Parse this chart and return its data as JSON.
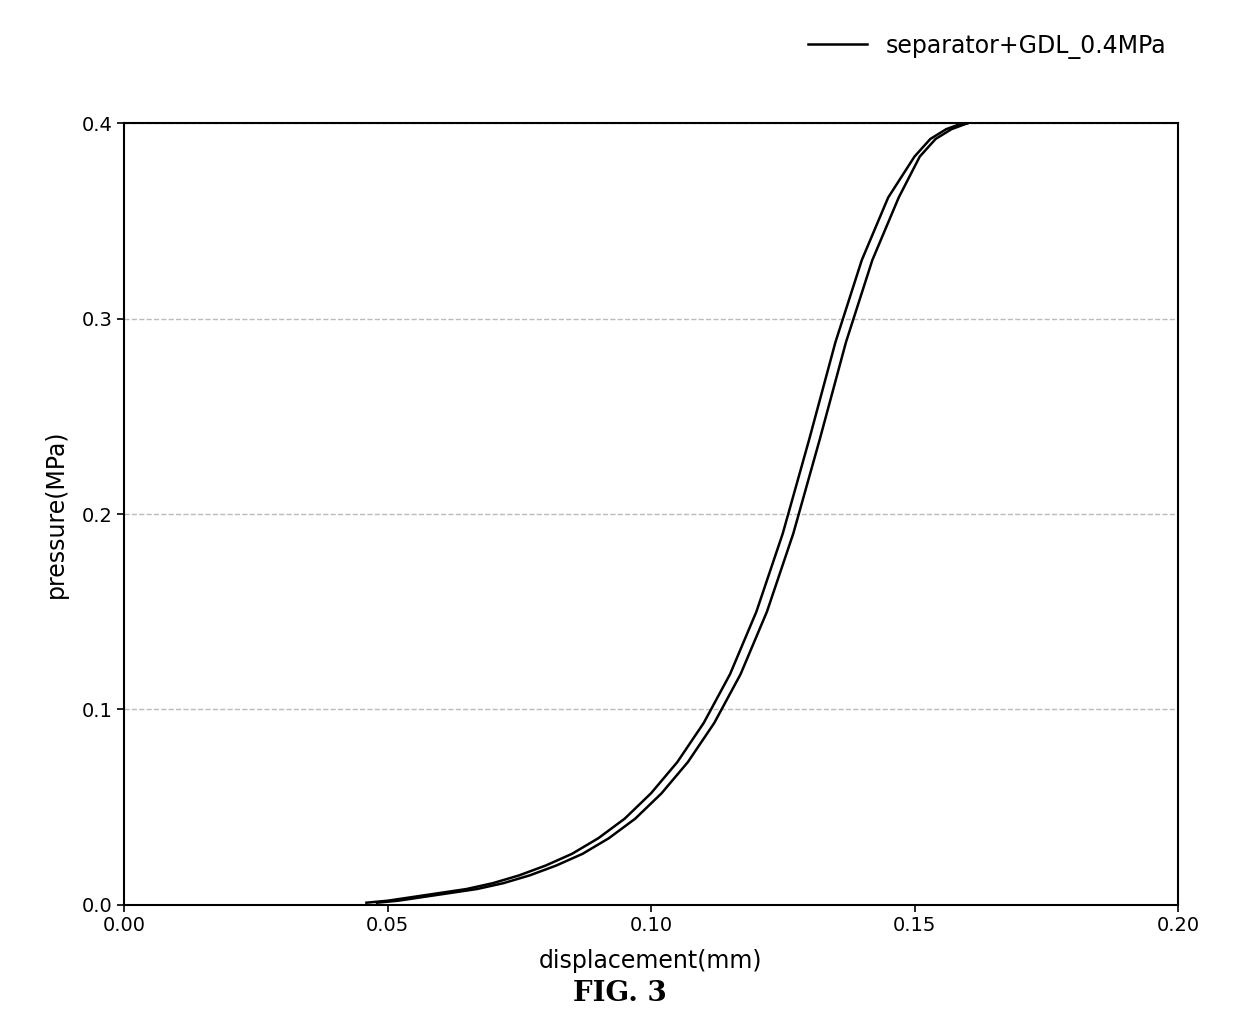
{
  "legend_label": "separator+GDL_0.4MPa",
  "xlabel": "displacement(mm)",
  "ylabel": "pressure(MPa)",
  "figure_label": "FIG. 3",
  "xlim": [
    0.0,
    0.2
  ],
  "ylim": [
    0.0,
    0.4
  ],
  "xticks": [
    0.0,
    0.05,
    0.1,
    0.15,
    0.2
  ],
  "yticks": [
    0.0,
    0.1,
    0.2,
    0.3,
    0.4
  ],
  "grid_color": "#bbbbbb",
  "line_color": "#000000",
  "line_width": 1.8,
  "background_color": "#ffffff",
  "curve1_x": [
    0.046,
    0.05,
    0.055,
    0.06,
    0.065,
    0.07,
    0.075,
    0.08,
    0.085,
    0.09,
    0.095,
    0.1,
    0.105,
    0.11,
    0.115,
    0.12,
    0.125,
    0.13,
    0.135,
    0.14,
    0.145,
    0.15,
    0.153,
    0.156,
    0.158,
    0.16
  ],
  "curve1_y": [
    0.001,
    0.002,
    0.004,
    0.006,
    0.008,
    0.011,
    0.015,
    0.02,
    0.026,
    0.034,
    0.044,
    0.057,
    0.073,
    0.093,
    0.118,
    0.15,
    0.19,
    0.238,
    0.288,
    0.33,
    0.362,
    0.383,
    0.392,
    0.397,
    0.399,
    0.4
  ],
  "curve2_x": [
    0.048,
    0.052,
    0.057,
    0.062,
    0.067,
    0.072,
    0.077,
    0.082,
    0.087,
    0.092,
    0.097,
    0.102,
    0.107,
    0.112,
    0.117,
    0.122,
    0.127,
    0.132,
    0.137,
    0.142,
    0.147,
    0.151,
    0.154,
    0.157,
    0.159,
    0.16
  ],
  "curve2_y": [
    0.001,
    0.002,
    0.004,
    0.006,
    0.008,
    0.011,
    0.015,
    0.02,
    0.026,
    0.034,
    0.044,
    0.057,
    0.073,
    0.093,
    0.118,
    0.15,
    0.19,
    0.238,
    0.288,
    0.33,
    0.362,
    0.383,
    0.392,
    0.397,
    0.399,
    0.4
  ]
}
